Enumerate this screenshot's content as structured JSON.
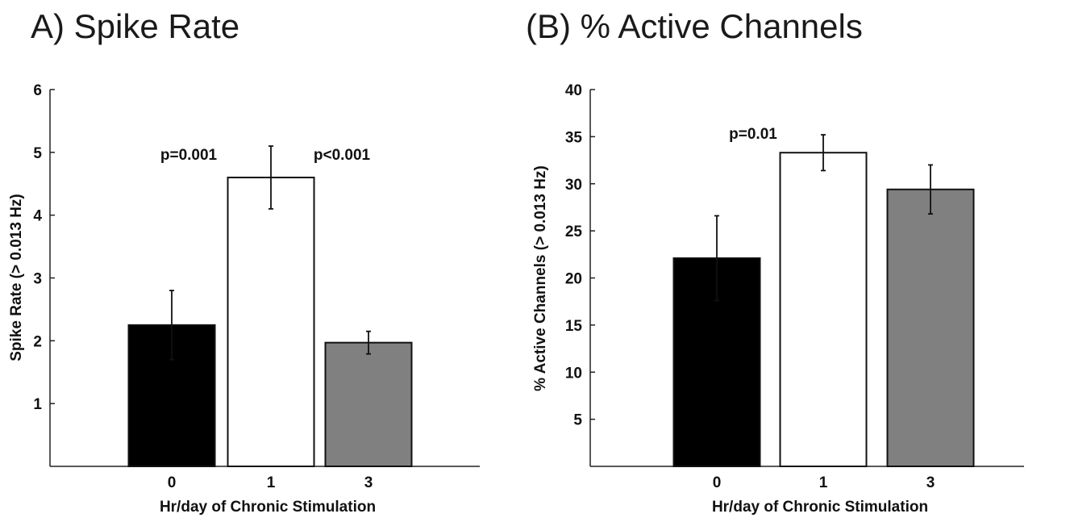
{
  "chart_data": [
    {
      "type": "bar",
      "title": "A) Spike Rate",
      "xlabel": "Hr/day of Chronic Stimulation",
      "ylabel": "Spike Rate (> 0.013 Hz)",
      "ylim": [
        0,
        6
      ],
      "yticks": [
        1,
        2,
        3,
        4,
        5,
        6
      ],
      "categories": [
        "0",
        "1",
        "3"
      ],
      "values": [
        2.25,
        4.6,
        1.97
      ],
      "errors": [
        0.55,
        0.5,
        0.18
      ],
      "bar_colors": [
        "#000000",
        "#ffffff",
        "#808080"
      ],
      "annotations": [
        {
          "text": "p=0.001",
          "between": [
            "0",
            "1"
          ]
        },
        {
          "text": "p<0.001",
          "between": [
            "1",
            "3"
          ]
        }
      ],
      "grid": false
    },
    {
      "type": "bar",
      "title": "(B) % Active Channels",
      "xlabel": "Hr/day of Chronic Stimulation",
      "ylabel": "% Active Channels (> 0.013 Hz)",
      "ylim": [
        0,
        40
      ],
      "yticks": [
        5,
        10,
        15,
        20,
        25,
        30,
        35,
        40
      ],
      "categories": [
        "0",
        "1",
        "3"
      ],
      "values": [
        22.1,
        33.3,
        29.4
      ],
      "errors": [
        4.5,
        1.9,
        2.6
      ],
      "bar_colors": [
        "#000000",
        "#ffffff",
        "#808080"
      ],
      "annotations": [
        {
          "text": "p=0.01",
          "between": [
            "0",
            "1"
          ]
        }
      ],
      "grid": false
    }
  ]
}
